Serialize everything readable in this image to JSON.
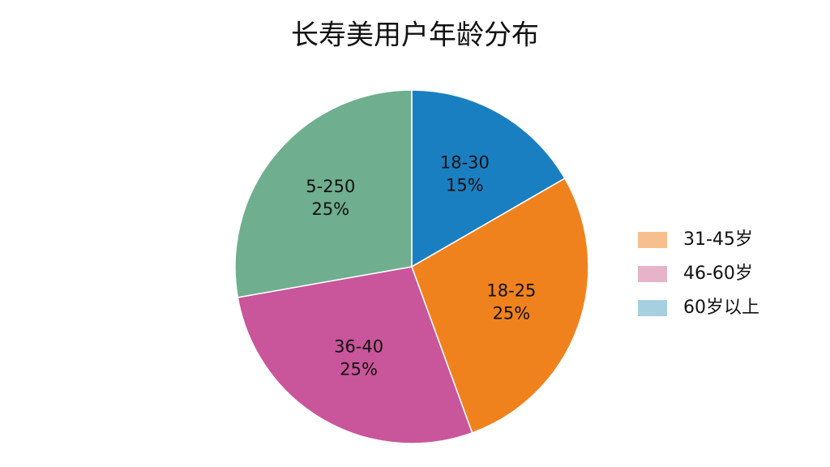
{
  "chart_data": {
    "type": "pie",
    "title": "长寿美用户年龄分布",
    "categories": [
      "18-30",
      "18-25",
      "36-40",
      "5-250"
    ],
    "values": [
      15,
      25,
      25,
      25
    ],
    "value_labels": [
      "15%",
      "25%",
      "25%",
      "25%"
    ],
    "colors": [
      "#1a7fc1",
      "#f0821e",
      "#c9559a",
      "#6fae8f"
    ],
    "legend": [
      {
        "name": "31-45岁",
        "color": "#f6c08e"
      },
      {
        "name": "46-60岁",
        "color": "#e6b3c9"
      },
      {
        "name": "60岁以上",
        "color": "#a6cfe0"
      }
    ]
  }
}
